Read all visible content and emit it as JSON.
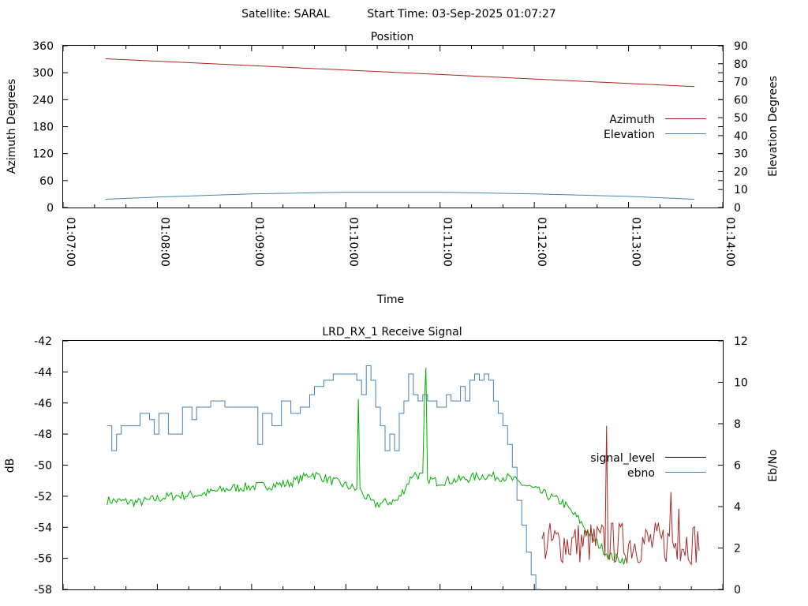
{
  "header": {
    "satellite_label": "Satellite: SARAL",
    "start_time_label": "Start Time: 03-Sep-2025 01:07:27"
  },
  "chart_data": [
    {
      "type": "line",
      "title": "Position",
      "xlabel": "Time",
      "ylabel": "Azimuth Degrees",
      "y2label": "Elevation Degrees",
      "xlim": [
        "01:07:00",
        "01:14:00"
      ],
      "x_ticks": [
        "01:07:00",
        "01:08:00",
        "01:09:00",
        "01:10:00",
        "01:11:00",
        "01:12:00",
        "01:13:00",
        "01:14:00"
      ],
      "ylim": [
        0,
        360
      ],
      "y_ticks": [
        0,
        60,
        120,
        180,
        240,
        300,
        360
      ],
      "y2lim": [
        0,
        90
      ],
      "y2_ticks": [
        0,
        10,
        20,
        30,
        40,
        50,
        60,
        70,
        80,
        90
      ],
      "legend_position": "right",
      "series": [
        {
          "name": "Azimuth",
          "axis": "y",
          "color": "#b22222",
          "x": [
            "01:07:27",
            "01:09:00",
            "01:10:00",
            "01:11:00",
            "01:12:00",
            "01:13:00",
            "01:13:42"
          ],
          "values": [
            331,
            316,
            306,
            296,
            286,
            276,
            269
          ]
        },
        {
          "name": "Elevation",
          "axis": "y2",
          "color": "#4682b4",
          "x": [
            "01:07:27",
            "01:08:00",
            "01:09:00",
            "01:10:00",
            "01:11:00",
            "01:12:00",
            "01:13:00",
            "01:13:42"
          ],
          "values": [
            4.6,
            5.8,
            7.6,
            8.5,
            8.5,
            7.6,
            6.2,
            4.6
          ]
        }
      ]
    },
    {
      "type": "line",
      "title": "LRD_RX_1 Receive Signal",
      "ylabel": "dB",
      "y2label": "Eb/No",
      "xlim": [
        "01:07:00",
        "01:14:00"
      ],
      "ylim": [
        -58,
        -42
      ],
      "y_ticks": [
        -58,
        -56,
        -54,
        -52,
        -50,
        -48,
        -46,
        -44,
        -42
      ],
      "y2lim": [
        0,
        12
      ],
      "y2_ticks": [
        0,
        2,
        4,
        6,
        8,
        10,
        12
      ],
      "legend_position": "right",
      "series": [
        {
          "name": "signal_level",
          "axis": "y",
          "color": "#000000",
          "x": [],
          "values": []
        },
        {
          "name": "ebno",
          "axis": "y2",
          "color": "#4682b4",
          "x": [
            "01:07:28",
            "01:07:31",
            "01:07:34",
            "01:07:37",
            "01:07:40",
            "01:07:49",
            "01:07:55",
            "01:07:58",
            "01:08:01",
            "01:08:04",
            "01:08:07",
            "01:08:16",
            "01:08:22",
            "01:08:25",
            "01:08:31",
            "01:08:34",
            "01:08:43",
            "01:08:58",
            "01:09:04",
            "01:09:07",
            "01:09:13",
            "01:09:19",
            "01:09:25",
            "01:09:31",
            "01:09:37",
            "01:09:40",
            "01:09:46",
            "01:09:52",
            "01:10:04",
            "01:10:07",
            "01:10:10",
            "01:10:13",
            "01:10:16",
            "01:10:19",
            "01:10:22",
            "01:10:25",
            "01:10:28",
            "01:10:31",
            "01:10:34",
            "01:10:37",
            "01:10:40",
            "01:10:43",
            "01:10:46",
            "01:10:49",
            "01:10:52",
            "01:10:58",
            "01:11:04",
            "01:11:07",
            "01:11:13",
            "01:11:16",
            "01:11:19",
            "01:11:22",
            "01:11:25",
            "01:11:28",
            "01:11:31",
            "01:11:34",
            "01:11:37",
            "01:11:40",
            "01:11:43",
            "01:11:46",
            "01:11:49",
            "01:11:52",
            "01:11:55",
            "01:11:58",
            "01:12:01",
            "01:12:04"
          ],
          "values": [
            7.9,
            6.7,
            7.5,
            7.9,
            7.9,
            8.5,
            8.2,
            7.5,
            8.5,
            8.5,
            7.5,
            8.8,
            8.2,
            8.8,
            8.8,
            9.1,
            8.8,
            8.8,
            7.0,
            8.5,
            7.9,
            9.1,
            8.5,
            8.8,
            9.4,
            9.8,
            10.1,
            10.4,
            10.4,
            10.1,
            9.4,
            10.8,
            10.1,
            8.8,
            7.9,
            6.7,
            7.5,
            6.7,
            8.5,
            9.1,
            10.4,
            9.4,
            9.1,
            9.4,
            9.1,
            8.8,
            9.4,
            9.1,
            9.8,
            9.1,
            10.1,
            10.4,
            10.1,
            10.4,
            10.1,
            9.1,
            8.5,
            7.9,
            7.0,
            5.9,
            4.3,
            3.1,
            1.8,
            0.7,
            0.0,
            0.0
          ]
        }
      ]
    }
  ]
}
